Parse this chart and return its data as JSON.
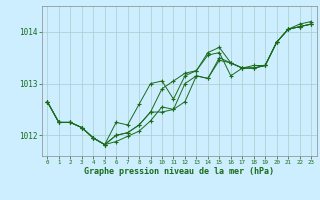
{
  "xlabel": "Graphe pression niveau de la mer (hPa)",
  "xlim": [
    -0.5,
    23.5
  ],
  "ylim": [
    1011.6,
    1014.5
  ],
  "yticks": [
    1012,
    1013,
    1014
  ],
  "xticks": [
    0,
    1,
    2,
    3,
    4,
    5,
    6,
    7,
    8,
    9,
    10,
    11,
    12,
    13,
    14,
    15,
    16,
    17,
    18,
    19,
    20,
    21,
    22,
    23
  ],
  "background_color": "#cceeff",
  "grid_color": "#aacccc",
  "line_color": "#1a6b1a",
  "marker": "+",
  "series": [
    [
      1012.65,
      1012.25,
      1012.25,
      1012.15,
      1011.95,
      1011.82,
      1011.88,
      1011.98,
      1012.08,
      1012.28,
      1012.55,
      1012.5,
      1012.65,
      1013.15,
      1013.1,
      1013.5,
      1013.4,
      1013.3,
      1013.3,
      1013.35,
      1013.8,
      1014.05,
      1014.1,
      1014.15
    ],
    [
      1012.65,
      1012.25,
      1012.25,
      1012.15,
      1011.95,
      1011.82,
      1012.25,
      1012.2,
      1012.6,
      1013.0,
      1013.05,
      1012.7,
      1013.15,
      1013.25,
      1013.55,
      1013.6,
      1013.15,
      1013.3,
      1013.3,
      1013.35,
      1013.8,
      1014.05,
      1014.1,
      1014.15
    ],
    [
      1012.65,
      1012.25,
      1012.25,
      1012.15,
      1011.95,
      1011.82,
      1012.0,
      1012.05,
      1012.2,
      1012.45,
      1012.9,
      1013.05,
      1013.2,
      1013.25,
      1013.6,
      1013.7,
      1013.4,
      1013.3,
      1013.35,
      1013.35,
      1013.8,
      1014.05,
      1014.15,
      1014.2
    ],
    [
      1012.65,
      1012.25,
      1012.25,
      1012.15,
      1011.95,
      1011.82,
      1012.0,
      1012.05,
      1012.2,
      1012.45,
      1012.45,
      1012.5,
      1013.0,
      1013.15,
      1013.1,
      1013.45,
      1013.4,
      1013.3,
      1013.3,
      1013.35,
      1013.8,
      1014.05,
      1014.1,
      1014.15
    ]
  ]
}
